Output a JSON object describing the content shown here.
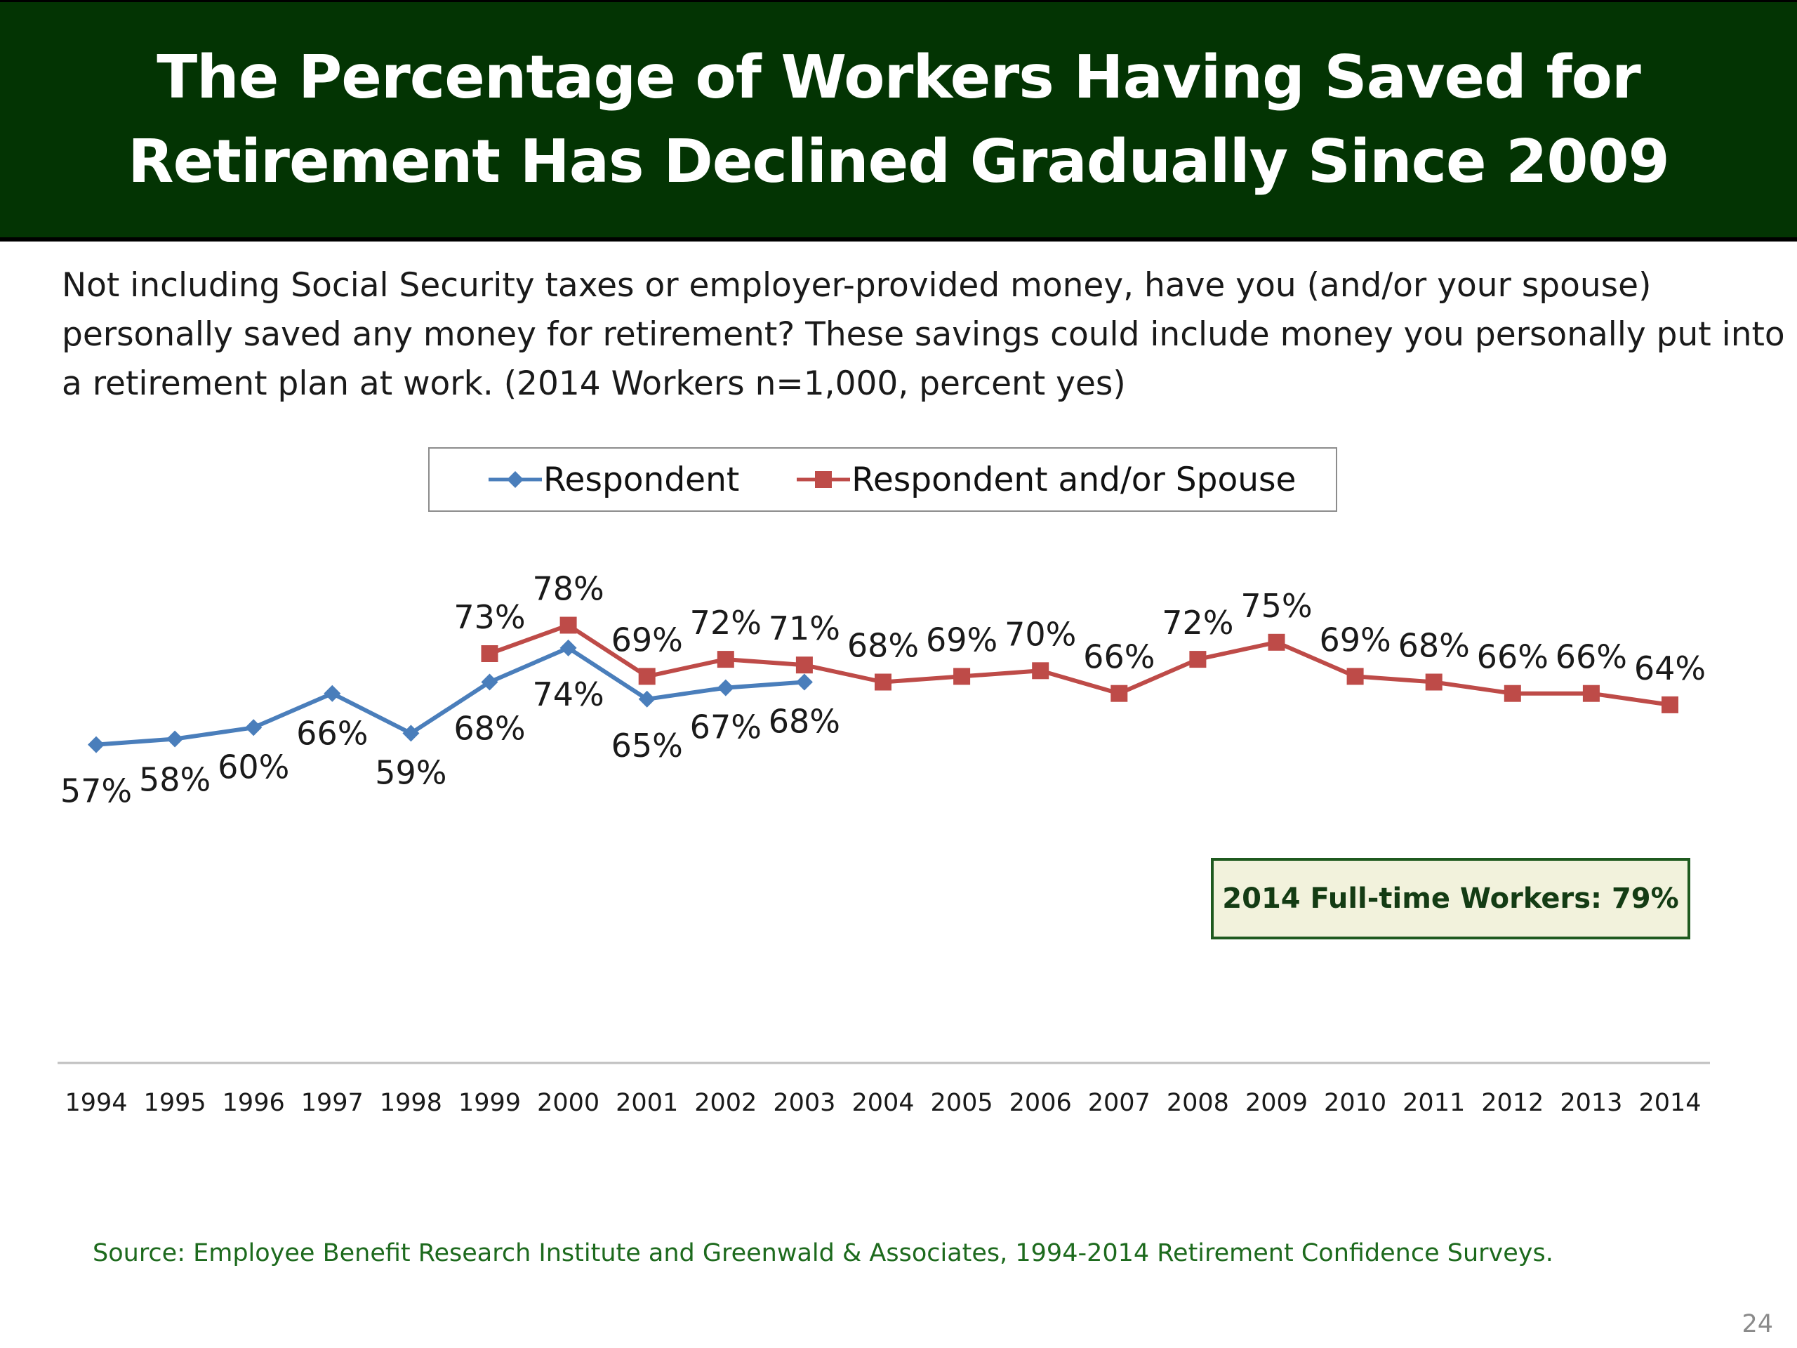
{
  "title": {
    "line1": "The Percentage of Workers Having Saved for",
    "line2": "Retirement Has Declined Gradually Since 2009"
  },
  "question": {
    "line1": "Not including Social Security taxes or employer-provided money, have you (and/or your spouse)",
    "line2": "personally saved any money for retirement?  These savings could include money you personally put into",
    "line3": "a retirement plan at work. (2014 Workers n=1,000, percent yes)"
  },
  "callout": "2014 Full-time Workers: 79%",
  "source": "Source:  Employee Benefit Research Institute and Greenwald & Associates, 1994-2014 Retirement Confidence Surveys.",
  "page_number": "24",
  "colors": {
    "title_bg": "#033403",
    "respondent": "#4a7ebb",
    "spouse": "#be4b48",
    "source_text": "#1d6a1d"
  },
  "chart_data": {
    "type": "line",
    "x": [
      "1994",
      "1995",
      "1996",
      "1997",
      "1998",
      "1999",
      "2000",
      "2001",
      "2002",
      "2003",
      "2004",
      "2005",
      "2006",
      "2007",
      "2008",
      "2009",
      "2010",
      "2011",
      "2012",
      "2013",
      "2014"
    ],
    "series": [
      {
        "name": "Respondent",
        "marker": "diamond",
        "color": "#4a7ebb",
        "values": [
          57,
          58,
          60,
          66,
          59,
          68,
          74,
          65,
          67,
          68,
          null,
          null,
          null,
          null,
          null,
          null,
          null,
          null,
          null,
          null,
          null
        ]
      },
      {
        "name": "Respondent and/or Spouse",
        "marker": "square",
        "color": "#be4b48",
        "values": [
          null,
          null,
          null,
          null,
          null,
          73,
          78,
          69,
          72,
          71,
          68,
          69,
          70,
          66,
          72,
          75,
          69,
          68,
          66,
          66,
          64
        ]
      }
    ],
    "data_label_format": "{v}%",
    "legend": "top-center",
    "grid": false
  }
}
